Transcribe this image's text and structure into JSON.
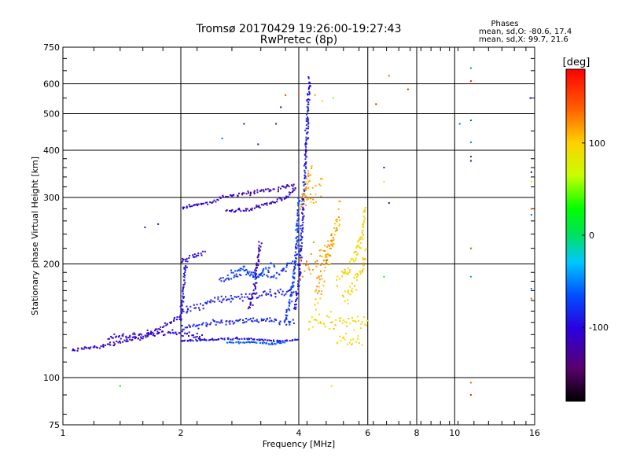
{
  "chart_data": {
    "type": "scatter",
    "title": "Tromsø 20170429 19:26:00-19:27:43",
    "subtitle": "RwPretec (8p)",
    "xlabel": "Frequency [MHz]",
    "ylabel": "Stationary phase Virtual Height [km]",
    "x_scale": "log",
    "y_scale": "log",
    "xlim": [
      1,
      16
    ],
    "ylim": [
      75,
      750
    ],
    "grid": true,
    "x_tick_labels": [
      "1",
      "2",
      "4",
      "6",
      "8",
      "10",
      "16"
    ],
    "x_ticks": [
      1,
      2,
      4,
      6,
      8,
      10,
      16
    ],
    "y_tick_labels": [
      "75",
      "100",
      "200",
      "300",
      "400",
      "500",
      "600",
      "750"
    ],
    "y_ticks": [
      75,
      100,
      200,
      300,
      400,
      500,
      600,
      750
    ],
    "stats": {
      "heading": "Phases",
      "line1": "mean, sd,O: -80.6, 17.4",
      "line2": "mean, sd,X:  99.7, 21.6"
    },
    "colorbar": {
      "label": "[deg]",
      "range": [
        -180,
        180
      ],
      "tick_labels": [
        "100",
        "0",
        "-100"
      ],
      "ticks": [
        100,
        0,
        -100
      ]
    },
    "traces": [
      {
        "x": [
          1.05,
          1.3,
          1.6,
          1.85,
          2.0
        ],
        "y": [
          118,
          122,
          128,
          138,
          145
        ],
        "phase": -110,
        "sd": 2
      },
      {
        "x": [
          1.3,
          1.6,
          1.9,
          2.3
        ],
        "y": [
          128,
          130,
          132,
          128
        ],
        "phase": -105,
        "sd": 3
      },
      {
        "x": [
          2.0,
          2.4,
          2.8,
          3.2,
          3.6,
          4.0
        ],
        "y": [
          125,
          126,
          127,
          126,
          125,
          126
        ],
        "phase": -95,
        "sd": 1
      },
      {
        "x": [
          2.6,
          3.0,
          3.4,
          3.7
        ],
        "y": [
          124,
          124,
          123,
          124
        ],
        "phase": -60,
        "sd": 1
      },
      {
        "x": [
          2.0,
          2.5,
          3.0,
          3.5,
          3.9
        ],
        "y": [
          135,
          140,
          142,
          141,
          140
        ],
        "phase": -85,
        "sd": 3
      },
      {
        "x": [
          2.0,
          2.5,
          3.0,
          3.5,
          3.9
        ],
        "y": [
          150,
          160,
          165,
          168,
          170
        ],
        "phase": -90,
        "sd": 4
      },
      {
        "x": [
          2.5,
          2.9,
          3.2,
          3.5,
          3.85
        ],
        "y": [
          180,
          190,
          188,
          185,
          200
        ],
        "phase": -80,
        "sd": 4
      },
      {
        "x": [
          2.7,
          2.9,
          3.1,
          3.3,
          3.5
        ],
        "y": [
          190,
          195,
          185,
          195,
          200
        ],
        "phase": -65,
        "sd": 3
      },
      {
        "x": [
          3.0,
          3.1,
          3.15,
          3.2
        ],
        "y": [
          150,
          180,
          210,
          230
        ],
        "phase": -115,
        "sd": 3
      },
      {
        "x": [
          2.0,
          2.15,
          2.3
        ],
        "y": [
          200,
          210,
          215
        ],
        "phase": -100,
        "sd": 3
      },
      {
        "x": [
          2.0,
          2.03,
          2.06
        ],
        "y": [
          140,
          170,
          200
        ],
        "phase": -90,
        "sd": 3
      },
      {
        "x": [
          2.0,
          2.1,
          2.3,
          2.5
        ],
        "y": [
          280,
          285,
          290,
          295
        ],
        "phase": -105,
        "sd": 2
      },
      {
        "x": [
          2.6,
          3.0,
          3.4,
          3.7,
          3.95
        ],
        "y": [
          275,
          280,
          290,
          300,
          320
        ],
        "phase": -110,
        "sd": 2
      },
      {
        "x": [
          2.5,
          2.8,
          3.1,
          3.5,
          3.9
        ],
        "y": [
          300,
          305,
          310,
          315,
          325
        ],
        "phase": -120,
        "sd": 2
      },
      {
        "x": [
          3.9,
          4.0,
          4.05,
          4.1,
          4.15,
          4.2,
          4.25
        ],
        "y": [
          150,
          180,
          220,
          280,
          350,
          450,
          620
        ],
        "phase": -90,
        "sd": 3
      },
      {
        "x": [
          3.7,
          3.85,
          3.95,
          4.0
        ],
        "y": [
          140,
          170,
          220,
          300
        ],
        "phase": -75,
        "sd": 3
      },
      {
        "x": [
          4.2,
          4.5,
          4.8,
          5.2,
          5.7,
          6.0
        ],
        "y": [
          140,
          141,
          142,
          142,
          141,
          140
        ],
        "phase": 95,
        "sd": 10
      },
      {
        "x": [
          4.4,
          4.6,
          4.8,
          5.0,
          5.1
        ],
        "y": [
          160,
          190,
          220,
          260,
          280
        ],
        "phase": 115,
        "sd": 14
      },
      {
        "x": [
          4.0,
          4.3,
          4.6,
          4.9
        ],
        "y": [
          190,
          200,
          210,
          230
        ],
        "phase": 120,
        "sd": 15
      },
      {
        "x": [
          4.0,
          4.3,
          4.6
        ],
        "y": [
          280,
          300,
          320
        ],
        "phase": 110,
        "sd": 10
      },
      {
        "x": [
          5.0,
          5.3,
          5.6,
          5.8,
          5.9
        ],
        "y": [
          180,
          190,
          210,
          240,
          280
        ],
        "phase": 95,
        "sd": 8
      },
      {
        "x": [
          5.2,
          5.5,
          5.8,
          5.95
        ],
        "y": [
          160,
          175,
          195,
          215
        ],
        "phase": 100,
        "sd": 9
      },
      {
        "x": [
          5.0,
          5.5,
          5.8
        ],
        "y": [
          125,
          124,
          125
        ],
        "phase": 90,
        "sd": 10
      },
      {
        "x": [
          4.1,
          4.2,
          4.3
        ],
        "y": [
          300,
          330,
          360
        ],
        "phase": 115,
        "sd": 10
      }
    ],
    "points": [
      {
        "x": 1.4,
        "y": 95,
        "phase": 10
      },
      {
        "x": 1.62,
        "y": 250,
        "phase": -90
      },
      {
        "x": 1.75,
        "y": 255,
        "phase": -95
      },
      {
        "x": 2.55,
        "y": 430,
        "phase": -55
      },
      {
        "x": 2.9,
        "y": 470,
        "phase": -100
      },
      {
        "x": 3.15,
        "y": 415,
        "phase": -105
      },
      {
        "x": 3.5,
        "y": 470,
        "phase": -115
      },
      {
        "x": 3.6,
        "y": 520,
        "phase": -95
      },
      {
        "x": 3.7,
        "y": 560,
        "phase": 150
      },
      {
        "x": 4.0,
        "y": 560,
        "phase": 140
      },
      {
        "x": 4.4,
        "y": 560,
        "phase": 115
      },
      {
        "x": 4.6,
        "y": 540,
        "phase": 95
      },
      {
        "x": 4.9,
        "y": 550,
        "phase": 55
      },
      {
        "x": 6.3,
        "y": 530,
        "phase": 175
      },
      {
        "x": 6.8,
        "y": 630,
        "phase": 140
      },
      {
        "x": 7.6,
        "y": 580,
        "phase": 165
      },
      {
        "x": 6.6,
        "y": 360,
        "phase": -95
      },
      {
        "x": 6.8,
        "y": 290,
        "phase": -110
      },
      {
        "x": 6.6,
        "y": 330,
        "phase": 85
      },
      {
        "x": 10.3,
        "y": 470,
        "phase": -60
      },
      {
        "x": 11.0,
        "y": 660,
        "phase": -50
      },
      {
        "x": 11.0,
        "y": 610,
        "phase": 170
      },
      {
        "x": 11.0,
        "y": 480,
        "phase": -70
      },
      {
        "x": 11.0,
        "y": 420,
        "phase": -55
      },
      {
        "x": 11.0,
        "y": 385,
        "phase": -90
      },
      {
        "x": 11.0,
        "y": 375,
        "phase": -100
      },
      {
        "x": 11.0,
        "y": 220,
        "phase": 155
      },
      {
        "x": 11.0,
        "y": 185,
        "phase": -45
      },
      {
        "x": 11.0,
        "y": 97,
        "phase": 140
      },
      {
        "x": 11.0,
        "y": 90,
        "phase": 165
      },
      {
        "x": 15.6,
        "y": 550,
        "phase": -95
      },
      {
        "x": 15.7,
        "y": 350,
        "phase": -110
      },
      {
        "x": 15.7,
        "y": 330,
        "phase": 90
      },
      {
        "x": 15.7,
        "y": 280,
        "phase": 140
      },
      {
        "x": 15.7,
        "y": 270,
        "phase": -55
      },
      {
        "x": 15.7,
        "y": 172,
        "phase": -50
      },
      {
        "x": 15.7,
        "y": 162,
        "phase": 140
      },
      {
        "x": 4.85,
        "y": 95,
        "phase": 100
      },
      {
        "x": 6.6,
        "y": 185,
        "phase": 30
      }
    ]
  }
}
